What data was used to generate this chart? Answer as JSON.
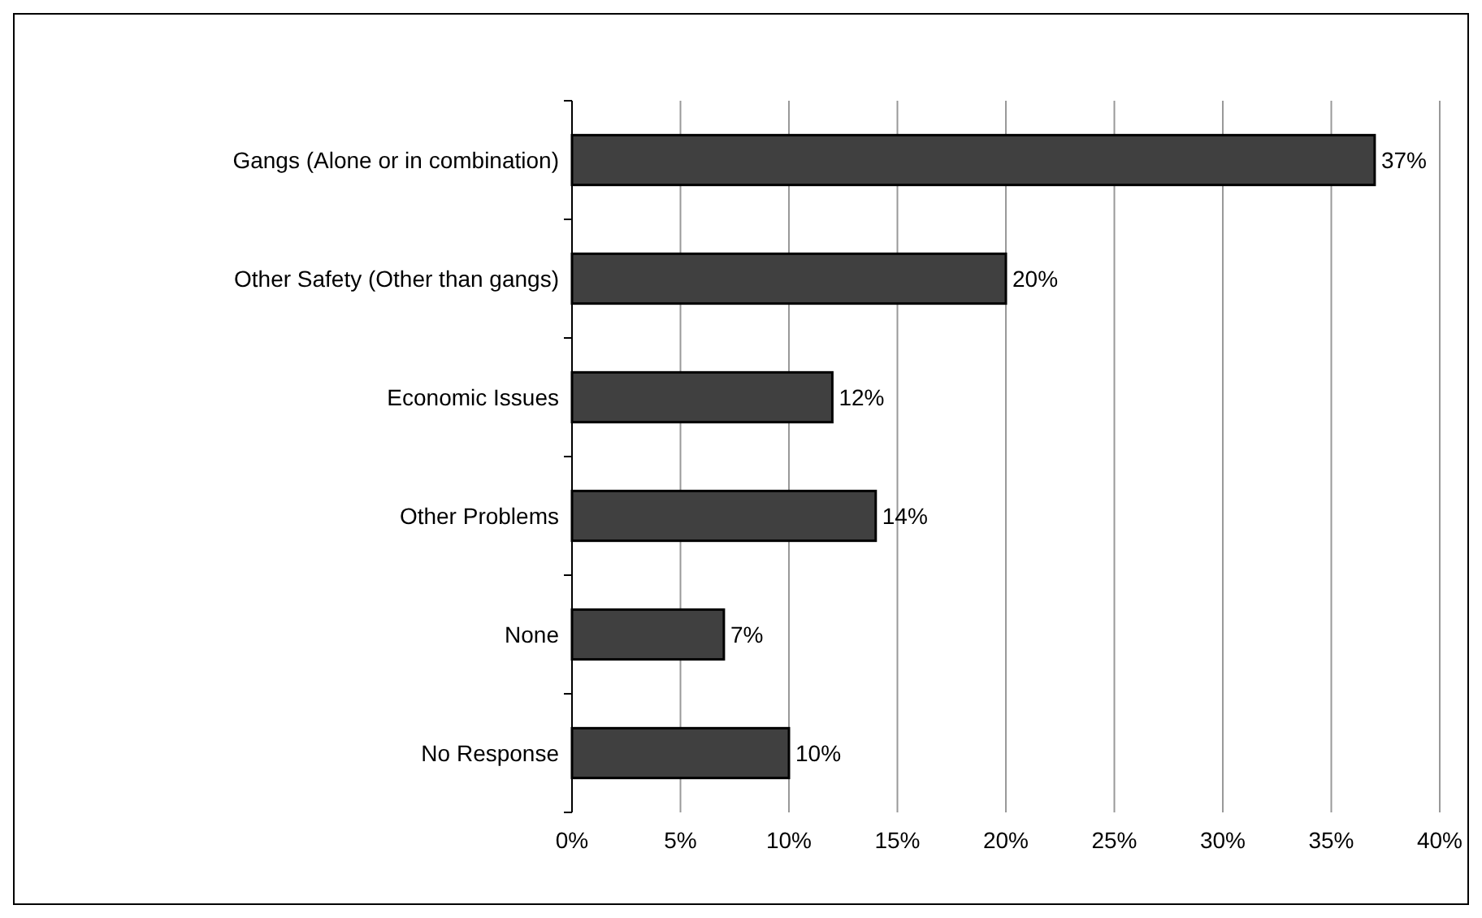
{
  "chart_data": {
    "type": "bar",
    "orientation": "horizontal",
    "categories": [
      "Gangs (Alone or in combination)",
      "Other Safety (Other than gangs)",
      "Economic Issues",
      "Other Problems",
      "None",
      "No Response"
    ],
    "values": [
      37,
      20,
      12,
      14,
      7,
      10
    ],
    "color": "#404040",
    "xlim": [
      0,
      40
    ],
    "xticks": [
      {
        "value": 0,
        "label": "0%"
      },
      {
        "value": 5,
        "label": "5%"
      },
      {
        "value": 10,
        "label": "10%"
      },
      {
        "value": 15,
        "label": "15%"
      },
      {
        "value": 20,
        "label": "20%"
      },
      {
        "value": 25,
        "label": "25%"
      },
      {
        "value": 30,
        "label": "30%"
      },
      {
        "value": 35,
        "label": "35%"
      },
      {
        "value": 40,
        "label": "40%"
      }
    ],
    "value_labels": [
      "37%",
      "20%",
      "12%",
      "14%",
      "7%",
      "10%"
    ],
    "grid": "x"
  }
}
